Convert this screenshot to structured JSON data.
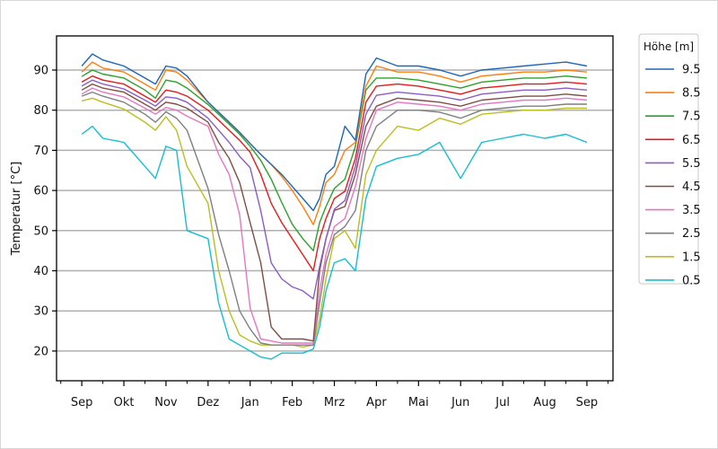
{
  "chart_data": {
    "type": "line",
    "title": "",
    "xlabel": "",
    "ylabel": "Temperatur [°C]",
    "x_unit": "months since September",
    "xlim": [
      -0.6,
      12.62
    ],
    "ylim": [
      12.6,
      98.5
    ],
    "grid": "horizontal",
    "yticks": [
      20,
      30,
      40,
      50,
      60,
      70,
      80,
      90
    ],
    "xtick_labels": [
      "Sep",
      "Okt",
      "Nov",
      "Dez",
      "Jan",
      "Feb",
      "Mrz",
      "Apr",
      "Mai",
      "Jun",
      "Jul",
      "Aug",
      "Sep"
    ],
    "legend": {
      "title": "Höhe [m]",
      "placement": "outside-right"
    },
    "x": [
      0,
      0.25,
      0.5,
      1,
      1.5,
      1.75,
      2,
      2.25,
      2.5,
      3,
      3.25,
      3.5,
      3.75,
      4,
      4.25,
      4.5,
      4.75,
      5,
      5.25,
      5.5,
      5.65,
      5.8,
      6,
      6.25,
      6.5,
      6.75,
      7,
      7.5,
      8,
      8.5,
      9,
      9.5,
      10,
      10.5,
      11,
      11.5,
      12
    ],
    "series": [
      {
        "name": "9.5",
        "color": "#1f66b5",
        "values": [
          91,
          94,
          92.5,
          91,
          88,
          86.5,
          91,
          90.5,
          88.5,
          82,
          79.5,
          77,
          74.5,
          71.7,
          69,
          66.5,
          64,
          61,
          58,
          55,
          58,
          64,
          66,
          76,
          72.5,
          89,
          93,
          91,
          91,
          90,
          88.5,
          90,
          90.5,
          91,
          91.5,
          92,
          91
        ]
      },
      {
        "name": "8.5",
        "color": "#ff7f0e",
        "values": [
          89.5,
          92,
          90.5,
          89.5,
          86.5,
          85,
          90,
          89.5,
          87.5,
          82,
          79.5,
          77,
          74.5,
          71.7,
          69,
          66.5,
          63.5,
          60,
          56,
          51.5,
          56,
          62,
          64,
          70,
          72,
          86,
          91,
          89.5,
          89.5,
          88.5,
          87,
          88.5,
          89,
          89.5,
          89.5,
          90,
          89.5
        ]
      },
      {
        "name": "7.5",
        "color": "#2ca02c",
        "values": [
          88.4,
          90,
          89,
          88,
          85,
          83,
          87.5,
          87,
          85.5,
          81.4,
          79,
          76.5,
          74,
          71,
          67.5,
          62.8,
          57,
          51.6,
          48,
          45,
          52,
          56,
          60.5,
          62.8,
          71,
          85,
          88,
          88,
          87.5,
          86.5,
          85.5,
          87,
          87.5,
          88,
          88,
          88.5,
          88
        ]
      },
      {
        "name": "6.5",
        "color": "#e31a1c",
        "values": [
          87,
          88.5,
          87.5,
          86.5,
          83.5,
          82,
          85,
          84.5,
          83.5,
          80,
          77.5,
          75,
          72.5,
          69.5,
          64,
          56.8,
          52,
          48,
          44,
          40,
          48,
          53,
          58,
          59.8,
          68,
          82,
          86,
          86.5,
          86,
          85,
          84,
          85.5,
          86,
          86.5,
          86.5,
          87,
          86.5
        ]
      },
      {
        "name": "5.5",
        "color": "#8a5cc4",
        "values": [
          86,
          87.5,
          86.5,
          85.3,
          82.5,
          81,
          83.3,
          83,
          82,
          78,
          75,
          72,
          68.5,
          65.7,
          55,
          42,
          38,
          36,
          35,
          33,
          41,
          48,
          55.3,
          57.5,
          66,
          79,
          83.7,
          84.5,
          84,
          83.5,
          82.5,
          84,
          84.5,
          85,
          85,
          85.5,
          85
        ]
      },
      {
        "name": "4.5",
        "color": "#7f4f45",
        "values": [
          85,
          86.5,
          85.5,
          84.5,
          81.5,
          80,
          82,
          81.5,
          80.5,
          77,
          72,
          68,
          62,
          52,
          42,
          26,
          23,
          23,
          23,
          22.5,
          40,
          48,
          55,
          56,
          64,
          76,
          81,
          83,
          82.5,
          82,
          81,
          82.5,
          83,
          83.5,
          83.5,
          84,
          83.5
        ]
      },
      {
        "name": "3.5",
        "color": "#e377c2",
        "values": [
          84,
          85.5,
          84.5,
          83.3,
          80.5,
          79,
          80.7,
          80,
          78.5,
          76,
          69,
          64,
          54,
          30.7,
          23,
          22.5,
          22,
          22,
          22,
          22,
          35,
          44,
          51,
          53,
          61,
          73,
          80,
          82,
          81.5,
          81,
          80,
          81.5,
          82,
          82.5,
          82.5,
          83,
          82.5
        ]
      },
      {
        "name": "2.5",
        "color": "#7f7f7f",
        "values": [
          83.5,
          84.5,
          83.5,
          82,
          79,
          77,
          79.6,
          78,
          75,
          60.5,
          49,
          40,
          30,
          25.5,
          22,
          21.5,
          21.5,
          21.5,
          21.5,
          21.5,
          32,
          42,
          49,
          51,
          55,
          70,
          76,
          80,
          80,
          79.5,
          78,
          80,
          80.5,
          81,
          81,
          81.5,
          81.5
        ]
      },
      {
        "name": "1.5",
        "color": "#bcbd22",
        "values": [
          82.3,
          83,
          82,
          80.3,
          77,
          75,
          78.4,
          75,
          66,
          56.8,
          40,
          30,
          24,
          22.5,
          21.5,
          21.5,
          21.5,
          21.5,
          21,
          21.5,
          28,
          38,
          48,
          50,
          45.6,
          64,
          70,
          76,
          75,
          78,
          76.5,
          79,
          79.5,
          80,
          80,
          80.5,
          80.5
        ]
      },
      {
        "name": "0.5",
        "color": "#17becf",
        "values": [
          74,
          76,
          73,
          72,
          66,
          63,
          71,
          70,
          50,
          48,
          32,
          23,
          21.5,
          20,
          18.5,
          18,
          19.5,
          19.5,
          19.5,
          20.5,
          26,
          35,
          42,
          43,
          40,
          58,
          66,
          68,
          69,
          72,
          63,
          72,
          73,
          74,
          73,
          74,
          72
        ]
      }
    ]
  }
}
